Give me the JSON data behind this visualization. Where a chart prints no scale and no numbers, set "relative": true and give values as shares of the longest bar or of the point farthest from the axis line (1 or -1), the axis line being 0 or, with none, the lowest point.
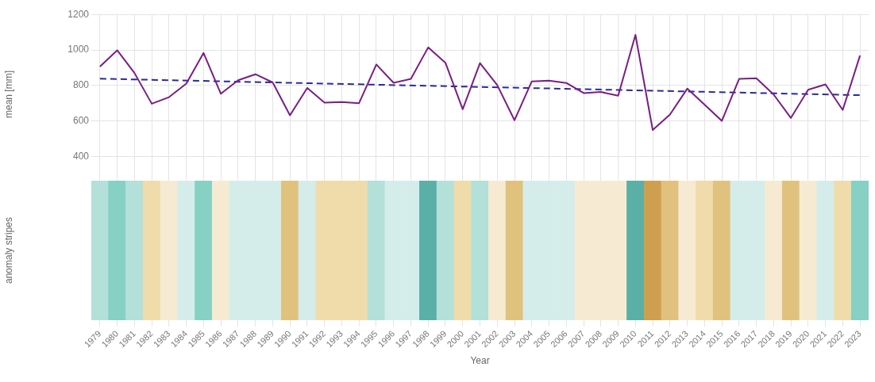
{
  "chart_data": [
    {
      "type": "line",
      "ylabel": "mean [mm]",
      "categories": [
        "1979",
        "1980",
        "1981",
        "1982",
        "1983",
        "1984",
        "1985",
        "1986",
        "1987",
        "1988",
        "1989",
        "1990",
        "1991",
        "1992",
        "1993",
        "1994",
        "1995",
        "1996",
        "1997",
        "1998",
        "1999",
        "2000",
        "2001",
        "2002",
        "2003",
        "2004",
        "2005",
        "2006",
        "2007",
        "2008",
        "2009",
        "2010",
        "2011",
        "2012",
        "2013",
        "2014",
        "2015",
        "2016",
        "2017",
        "2018",
        "2019",
        "2020",
        "2021",
        "2022",
        "2023"
      ],
      "series": [
        {
          "color": "#7b1d83",
          "values": [
            906,
            998,
            870,
            697,
            734,
            810,
            983,
            753,
            829,
            863,
            817,
            632,
            786,
            703,
            706,
            700,
            918,
            815,
            837,
            1014,
            928,
            666,
            926,
            802,
            604,
            823,
            827,
            814,
            757,
            763,
            742,
            1085,
            549,
            636,
            782,
            692,
            600,
            837,
            840,
            749,
            617,
            776,
            806,
            662,
            968
          ]
        },
        {
          "type": "line",
          "color": "#2a2a9e",
          "line_style": "dashed",
          "values": [
            838,
            null,
            null,
            null,
            null,
            null,
            null,
            null,
            null,
            null,
            null,
            null,
            null,
            null,
            null,
            null,
            null,
            null,
            null,
            null,
            null,
            null,
            null,
            null,
            null,
            null,
            null,
            null,
            null,
            null,
            null,
            null,
            null,
            null,
            null,
            null,
            null,
            null,
            null,
            null,
            null,
            null,
            null,
            null,
            745
          ]
        }
      ],
      "ylim": [
        300,
        1200
      ],
      "yticks": [
        400,
        600,
        800,
        1000,
        1200
      ],
      "grid": true,
      "marker": "none",
      "tick_labels": "y",
      "legend": false
    },
    {
      "type": "bar",
      "relative": true,
      "ylabel": "anomaly stripes",
      "xlabel": "Year",
      "categories": [
        "1979",
        "1980",
        "1981",
        "1982",
        "1983",
        "1984",
        "1985",
        "1986",
        "1987",
        "1988",
        "1989",
        "1990",
        "1991",
        "1992",
        "1993",
        "1994",
        "1995",
        "1996",
        "1997",
        "1998",
        "1999",
        "2000",
        "2001",
        "2002",
        "2003",
        "2004",
        "2005",
        "2006",
        "2007",
        "2008",
        "2009",
        "2010",
        "2011",
        "2012",
        "2013",
        "2014",
        "2015",
        "2016",
        "2017",
        "2018",
        "2019",
        "2020",
        "2021",
        "2022",
        "2023"
      ],
      "values": [
        1,
        1,
        1,
        1,
        1,
        1,
        1,
        1,
        1,
        1,
        1,
        1,
        1,
        1,
        1,
        1,
        1,
        1,
        1,
        1,
        1,
        1,
        1,
        1,
        1,
        1,
        1,
        1,
        1,
        1,
        1,
        1,
        1,
        1,
        1,
        1,
        1,
        1,
        1,
        1,
        1,
        1,
        1,
        1,
        1
      ],
      "colors": [
        "#b3e0d9",
        "#86d0c4",
        "#b3e0d9",
        "#f0dcaa",
        "#f6ebd2",
        "#d5edea",
        "#86d0c4",
        "#f6ebd2",
        "#d5edea",
        "#d5edea",
        "#d5edea",
        "#e0c27e",
        "#d5edea",
        "#f0dcaa",
        "#f0dcaa",
        "#f0dcaa",
        "#b3e0d9",
        "#d5edea",
        "#d5edea",
        "#5ab0a6",
        "#b3e0d9",
        "#f0dcaa",
        "#b3e0d9",
        "#f6ebd2",
        "#e0c27e",
        "#d5edea",
        "#d5edea",
        "#d5edea",
        "#f6ebd2",
        "#f6ebd2",
        "#f6ebd2",
        "#5ab0a6",
        "#cf9f50",
        "#e0c27e",
        "#f6ebd2",
        "#f0dcaa",
        "#e0c27e",
        "#d5edea",
        "#d5edea",
        "#f6ebd2",
        "#e0c27e",
        "#f6ebd2",
        "#d5edea",
        "#f0dcaa",
        "#86d0c4"
      ],
      "grid": "x",
      "tick_labels": "x",
      "legend": false
    }
  ]
}
